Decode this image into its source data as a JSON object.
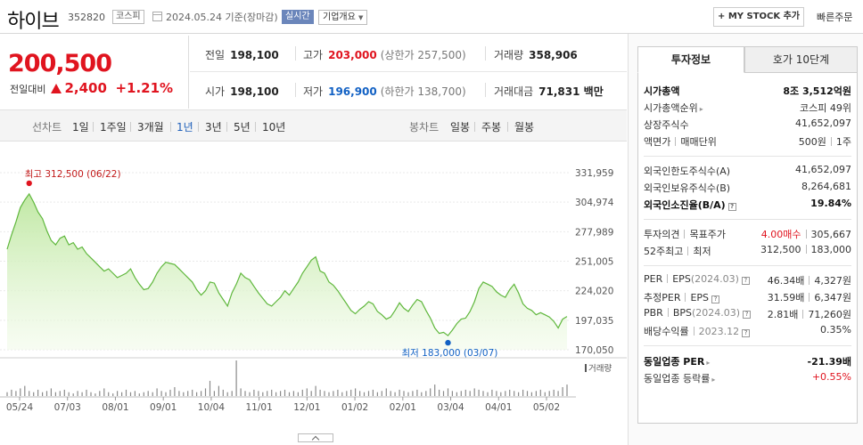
{
  "header": {
    "name": "하이브",
    "code": "352820",
    "market_tag": "코스피",
    "date": "2024.05.24",
    "basis": "기준(장마감)",
    "realtime_label": "실시간",
    "corp_info_label": "기업개요",
    "mystock_label": "+ MY STOCK 추가",
    "quickbuy_label": "빠른주문"
  },
  "price": {
    "current": "200,500",
    "diff_label": "전일대비",
    "diff_value": "2,400",
    "diff_pct": "+1.21%",
    "color_up": "#e0141f",
    "color_down": "#1261c4"
  },
  "stats": {
    "prev_label": "전일",
    "prev_value": "198,100",
    "high_label": "고가",
    "high_value": "203,000",
    "high_limit": "(상한가 257,500)",
    "volume_label": "거래량",
    "volume_value": "358,906",
    "open_label": "시가",
    "open_value": "198,100",
    "low_label": "저가",
    "low_value": "196,900",
    "low_limit": "(하한가 138,700)",
    "amount_label": "거래대금",
    "amount_value": "71,831 백만"
  },
  "period_bar": {
    "line_label": "선차트",
    "line_periods": [
      "1일",
      "1주일",
      "3개월",
      "1년",
      "3년",
      "5년",
      "10년"
    ],
    "selected": "1년",
    "candle_label": "봉차트",
    "candle_periods": [
      "일봉",
      "주봉",
      "월봉"
    ]
  },
  "chart_data": {
    "type": "area",
    "x_ticks": [
      "05/24",
      "07/03",
      "08/01",
      "09/01",
      "10/04",
      "11/01",
      "12/01",
      "01/02",
      "02/01",
      "03/04",
      "04/01",
      "05/02"
    ],
    "y_ticks": [
      "331,959",
      "304,974",
      "277,989",
      "251,005",
      "224,020",
      "197,035",
      "170,050"
    ],
    "ylim": [
      170050,
      331959
    ],
    "high_annotation": "최고 312,500 (06/22)",
    "low_annotation": "최저 183,000 (03/07)",
    "volume_label": "거래량",
    "series": [
      {
        "values": [
          262000,
          275000,
          287000,
          300000,
          307000,
          312500,
          305000,
          296000,
          290000,
          279000,
          270000,
          266000,
          272000,
          274000,
          266000,
          268000,
          262000,
          264000,
          258000,
          254000,
          250000,
          246000,
          242000,
          244000,
          240000,
          236000,
          238000,
          240000,
          244000,
          236000,
          230000,
          225000,
          226000,
          232000,
          240000,
          246000,
          250000,
          249000,
          248000,
          244000,
          240000,
          236000,
          232000,
          225000,
          220000,
          224000,
          232000,
          231000,
          222000,
          216000,
          210000,
          222000,
          230000,
          240000,
          236000,
          234000,
          228000,
          222000,
          217000,
          212000,
          210000,
          214000,
          218000,
          224000,
          220000,
          226000,
          232000,
          240000,
          246000,
          252000,
          255000,
          242000,
          240000,
          232000,
          229000,
          224000,
          218000,
          212000,
          206000,
          203000,
          207000,
          210000,
          214000,
          212000,
          205000,
          202000,
          198000,
          200000,
          206000,
          213000,
          208000,
          205000,
          211000,
          216000,
          214000,
          206000,
          199000,
          190000,
          185000,
          186000,
          183000,
          188000,
          194000,
          198000,
          199000,
          205000,
          214000,
          226000,
          232000,
          230000,
          228000,
          223000,
          220000,
          218000,
          225000,
          230000,
          222000,
          212000,
          208000,
          206000,
          202000,
          204000,
          202000,
          200000,
          196000,
          190000,
          198000,
          200500
        ],
        "volume": [
          3,
          5,
          4,
          6,
          8,
          4,
          3,
          5,
          3,
          4,
          6,
          3,
          4,
          5,
          3,
          2,
          4,
          3,
          5,
          3,
          2,
          4,
          6,
          3,
          2,
          4,
          3,
          5,
          3,
          4,
          2,
          3,
          4,
          3,
          6,
          4,
          3,
          5,
          7,
          4,
          3,
          4,
          5,
          3,
          4,
          6,
          12,
          4,
          8,
          5,
          3,
          4,
          28,
          6,
          4,
          3,
          5,
          4,
          3,
          4,
          5,
          3,
          4,
          5,
          3,
          4,
          3,
          5,
          6,
          4,
          8,
          5,
          4,
          3,
          4,
          5,
          3,
          4,
          5,
          6,
          4,
          3,
          4,
          5,
          3,
          4,
          6,
          4,
          3,
          5,
          4,
          3,
          4,
          5,
          3,
          4,
          6,
          9,
          5,
          4,
          6,
          4,
          3,
          4,
          5,
          4,
          6,
          5,
          4,
          3,
          5,
          4,
          3,
          4,
          5,
          4,
          3,
          5,
          4,
          3,
          4,
          5,
          3,
          4,
          5,
          4,
          7,
          9
        ]
      }
    ]
  },
  "right_panel": {
    "tab_active": "투자정보",
    "tab_inactive": "호가 10단계",
    "market_cap_label": "시가총액",
    "market_cap_value": "8조 3,512억원",
    "market_cap_rank_label": "시가총액순위",
    "market_cap_rank_value": "코스피 49위",
    "listed_shares_label": "상장주식수",
    "listed_shares_value": "41,652,097",
    "face_value_label": "액면가",
    "trade_unit_label": "매매단위",
    "face_value_value": "500원",
    "trade_unit_value": "1주",
    "foreign_limit_label": "외국인한도주식수(A)",
    "foreign_limit_value": "41,652,097",
    "foreign_held_label": "외국인보유주식수(B)",
    "foreign_held_value": "8,264,681",
    "foreign_ratio_label": "외국인소진율(B/A)",
    "foreign_ratio_value": "19.84%",
    "opinion_label": "투자의견",
    "target_label": "목표주가",
    "opinion_value": "4.00매수",
    "target_value": "305,667",
    "w52_high_label": "52주최고",
    "w52_low_label": "최저",
    "w52_high_value": "312,500",
    "w52_low_value": "183,000",
    "per_label": "PER",
    "eps_label": "EPS",
    "eps_period": "(2024.03)",
    "per_value": "46.34배",
    "eps_value": "4,327원",
    "est_per_label": "추정PER",
    "est_eps_label": "EPS",
    "est_per_value": "31.59배",
    "est_eps_value": "6,347원",
    "pbr_label": "PBR",
    "bps_label": "BPS",
    "bps_period": "(2024.03)",
    "pbr_value": "2.81배",
    "bps_value": "71,260원",
    "div_label": "배당수익률",
    "div_period": "2023.12",
    "div_value": "0.35%",
    "sector_per_label": "동일업종 PER",
    "sector_per_value": "-21.39배",
    "sector_change_label": "동일업종 등락률",
    "sector_change_value": "+0.55%"
  }
}
